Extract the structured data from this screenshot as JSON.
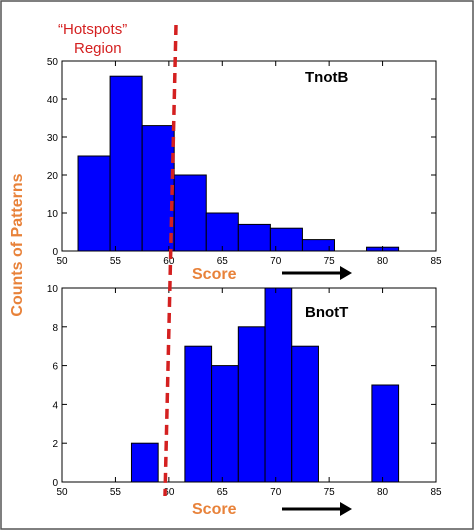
{
  "figure": {
    "border_color": "#555555",
    "hotspots_label_line1": "“Hotspots”",
    "hotspots_label_line2": "Region",
    "y_label": "Counts of Patterns",
    "x_label": "Score",
    "label_color": "#e8823a",
    "hotspot_line_color": "#d42020",
    "bar_color": "#0000ff",
    "bar_stroke": "#000000"
  },
  "chart_data": [
    {
      "type": "bar",
      "panel_label": "TnotB",
      "bin_edges": [
        51.5,
        54.5,
        57.5,
        60.5,
        63.5,
        66.5,
        69.5,
        72.5,
        75.5,
        78.5,
        81.5
      ],
      "values": [
        25,
        46,
        33,
        20,
        10,
        7,
        6,
        3,
        0,
        1
      ],
      "xlim": [
        50,
        85
      ],
      "ylim": [
        0,
        50
      ],
      "xticks": [
        50,
        55,
        60,
        65,
        70,
        75,
        80,
        85
      ],
      "yticks": [
        0,
        10,
        20,
        30,
        40,
        50
      ],
      "xlabel": "Score",
      "ylabel": "Counts of Patterns",
      "grid": false
    },
    {
      "type": "bar",
      "panel_label": "BnotT",
      "bin_edges": [
        56.5,
        59.0,
        61.5,
        64.0,
        66.5,
        69.0,
        71.5,
        74.0,
        76.5,
        79.0,
        81.5
      ],
      "values": [
        2,
        0,
        7,
        6,
        8,
        10,
        7,
        0,
        0,
        5
      ],
      "xlim": [
        50,
        85
      ],
      "ylim": [
        0,
        10
      ],
      "xticks": [
        50,
        55,
        60,
        65,
        70,
        75,
        80,
        85
      ],
      "yticks": [
        0,
        2,
        4,
        6,
        8,
        10
      ],
      "xlabel": "Score",
      "ylabel": "Counts of Patterns",
      "grid": false
    }
  ]
}
